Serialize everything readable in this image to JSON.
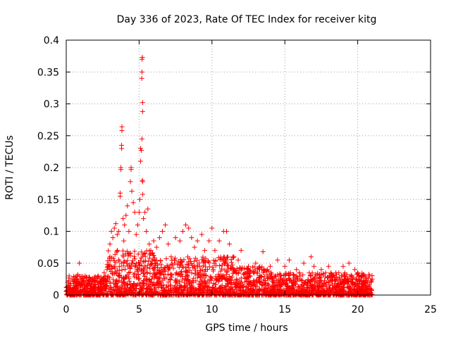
{
  "chart_data": {
    "type": "scatter",
    "title": "Day 336 of 2023, Rate Of TEC Index for receiver kitg",
    "xlabel": "GPS time / hours",
    "ylabel": "ROTI / TECUs",
    "xlim": [
      0,
      25
    ],
    "ylim": [
      0,
      0.4
    ],
    "xticks": [
      0,
      5,
      10,
      15,
      20,
      25
    ],
    "xtick_labels": [
      "0",
      "5",
      "10",
      "15",
      "20",
      "25"
    ],
    "yticks": [
      0,
      0.05,
      0.1,
      0.15,
      0.2,
      0.25,
      0.3,
      0.35,
      0.4
    ],
    "ytick_labels": [
      "0",
      "0.05",
      "0.1",
      "0.15",
      "0.2",
      "0.25",
      "0.3",
      "0.35",
      "0.4"
    ],
    "grid": true,
    "marker": "+",
    "color": "#ff0000",
    "series": [
      {
        "name": "ROTI",
        "note": "dense cloud of points from 0 to 21 h, mostly below 0.04 TECU/s; representative sample",
        "points": [
          [
            0.0,
            0.012
          ],
          [
            0.1,
            0.02
          ],
          [
            0.2,
            0.03
          ],
          [
            0.3,
            0.015
          ],
          [
            0.4,
            0.025
          ],
          [
            0.5,
            0.018
          ],
          [
            0.6,
            0.028
          ],
          [
            0.7,
            0.022
          ],
          [
            0.8,
            0.032
          ],
          [
            0.9,
            0.05
          ],
          [
            1.0,
            0.015
          ],
          [
            1.1,
            0.024
          ],
          [
            1.2,
            0.02
          ],
          [
            1.3,
            0.03
          ],
          [
            1.4,
            0.016
          ],
          [
            1.5,
            0.022
          ],
          [
            1.6,
            0.027
          ],
          [
            1.7,
            0.018
          ],
          [
            1.8,
            0.025
          ],
          [
            1.9,
            0.02
          ],
          [
            2.0,
            0.017
          ],
          [
            2.1,
            0.026
          ],
          [
            2.2,
            0.03
          ],
          [
            2.3,
            0.021
          ],
          [
            2.4,
            0.028
          ],
          [
            2.5,
            0.024
          ],
          [
            2.6,
            0.035
          ],
          [
            2.7,
            0.03
          ],
          [
            2.8,
            0.04
          ],
          [
            2.9,
            0.045
          ],
          [
            3.0,
            0.06
          ],
          [
            3.0,
            0.08
          ],
          [
            3.1,
            0.1
          ],
          [
            3.2,
            0.09
          ],
          [
            3.3,
            0.105
          ],
          [
            3.4,
            0.112
          ],
          [
            3.5,
            0.07
          ],
          [
            3.5,
            0.095
          ],
          [
            3.6,
            0.1
          ],
          [
            3.7,
            0.16
          ],
          [
            3.7,
            0.155
          ],
          [
            3.75,
            0.2
          ],
          [
            3.75,
            0.197
          ],
          [
            3.8,
            0.235
          ],
          [
            3.8,
            0.23
          ],
          [
            3.82,
            0.258
          ],
          [
            3.82,
            0.264
          ],
          [
            3.9,
            0.12
          ],
          [
            3.95,
            0.085
          ],
          [
            4.0,
            0.11
          ],
          [
            4.1,
            0.125
          ],
          [
            4.2,
            0.14
          ],
          [
            4.3,
            0.1
          ],
          [
            4.4,
            0.178
          ],
          [
            4.45,
            0.2
          ],
          [
            4.45,
            0.197
          ],
          [
            4.5,
            0.163
          ],
          [
            4.6,
            0.145
          ],
          [
            4.7,
            0.13
          ],
          [
            4.8,
            0.095
          ],
          [
            4.9,
            0.11
          ],
          [
            5.0,
            0.13
          ],
          [
            5.05,
            0.15
          ],
          [
            5.1,
            0.21
          ],
          [
            5.1,
            0.23
          ],
          [
            5.15,
            0.227
          ],
          [
            5.2,
            0.245
          ],
          [
            5.22,
            0.18
          ],
          [
            5.25,
            0.178
          ],
          [
            5.25,
            0.158
          ],
          [
            5.2,
            0.37
          ],
          [
            5.22,
            0.373
          ],
          [
            5.2,
            0.35
          ],
          [
            5.18,
            0.34
          ],
          [
            5.24,
            0.302
          ],
          [
            5.24,
            0.288
          ],
          [
            5.3,
            0.12
          ],
          [
            5.4,
            0.13
          ],
          [
            5.5,
            0.1
          ],
          [
            5.6,
            0.135
          ],
          [
            5.7,
            0.08
          ],
          [
            5.8,
            0.07
          ],
          [
            5.9,
            0.065
          ],
          [
            6.0,
            0.085
          ],
          [
            6.2,
            0.075
          ],
          [
            6.4,
            0.09
          ],
          [
            6.6,
            0.1
          ],
          [
            6.8,
            0.11
          ],
          [
            7.0,
            0.08
          ],
          [
            7.2,
            0.06
          ],
          [
            7.5,
            0.09
          ],
          [
            7.8,
            0.085
          ],
          [
            8.0,
            0.1
          ],
          [
            8.2,
            0.11
          ],
          [
            8.4,
            0.105
          ],
          [
            8.6,
            0.09
          ],
          [
            8.8,
            0.075
          ],
          [
            9.0,
            0.085
          ],
          [
            9.3,
            0.095
          ],
          [
            9.5,
            0.07
          ],
          [
            9.8,
            0.085
          ],
          [
            10.0,
            0.105
          ],
          [
            10.2,
            0.07
          ],
          [
            10.5,
            0.085
          ],
          [
            10.8,
            0.1
          ],
          [
            11.0,
            0.1
          ],
          [
            11.2,
            0.08
          ],
          [
            11.5,
            0.06
          ],
          [
            11.8,
            0.055
          ],
          [
            12.0,
            0.07
          ],
          [
            12.5,
            0.045
          ],
          [
            13.0,
            0.05
          ],
          [
            13.5,
            0.068
          ],
          [
            13.8,
            0.04
          ],
          [
            14.0,
            0.045
          ],
          [
            14.5,
            0.055
          ],
          [
            15.0,
            0.045
          ],
          [
            15.3,
            0.055
          ],
          [
            15.8,
            0.04
          ],
          [
            16.0,
            0.035
          ],
          [
            16.3,
            0.05
          ],
          [
            16.8,
            0.06
          ],
          [
            17.0,
            0.045
          ],
          [
            17.5,
            0.04
          ],
          [
            17.8,
            0.035
          ],
          [
            18.0,
            0.045
          ],
          [
            18.5,
            0.035
          ],
          [
            19.0,
            0.045
          ],
          [
            19.4,
            0.05
          ],
          [
            19.8,
            0.04
          ],
          [
            20.0,
            0.035
          ],
          [
            20.3,
            0.03
          ],
          [
            20.5,
            0.028
          ],
          [
            20.8,
            0.03
          ],
          [
            21.0,
            0.025
          ],
          [
            0.5,
            0.008
          ],
          [
            1.5,
            0.006
          ],
          [
            2.5,
            0.01
          ],
          [
            3.5,
            0.012
          ],
          [
            4.5,
            0.015
          ],
          [
            5.5,
            0.018
          ],
          [
            6.5,
            0.02
          ],
          [
            7.5,
            0.02
          ],
          [
            8.5,
            0.022
          ],
          [
            9.5,
            0.02
          ],
          [
            10.5,
            0.025
          ],
          [
            11.5,
            0.02
          ],
          [
            12.5,
            0.018
          ],
          [
            13.5,
            0.015
          ],
          [
            14.5,
            0.016
          ],
          [
            15.5,
            0.014
          ],
          [
            16.5,
            0.012
          ],
          [
            17.5,
            0.01
          ],
          [
            18.5,
            0.012
          ],
          [
            19.5,
            0.01
          ],
          [
            20.5,
            0.012
          ]
        ]
      }
    ]
  }
}
